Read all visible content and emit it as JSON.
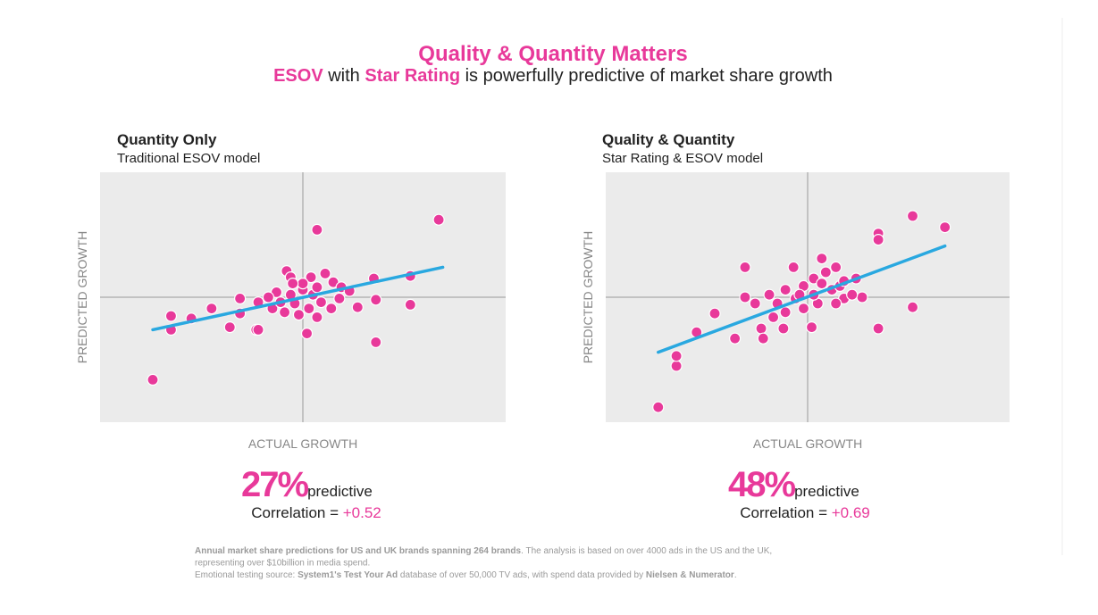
{
  "title": "Quality & Quantity Matters",
  "subtitle": [
    {
      "t": "ESOV",
      "accent": true
    },
    {
      "t": " with ",
      "accent": false
    },
    {
      "t": "Star Rating",
      "accent": true
    },
    {
      "t": " is powerfully predictive of market share growth",
      "accent": false
    }
  ],
  "chart_data": [
    {
      "type": "scatter",
      "title": "Quantity Only",
      "subtitle": "Traditional ESOV model",
      "x_label": "ACTUAL GROWTH",
      "y_label": "PREDICTED GROWTH",
      "xlim": [
        -100,
        100
      ],
      "ylim": [
        -100,
        100
      ],
      "color": "#e8399a",
      "x": [
        -74,
        67,
        7,
        -65,
        -65,
        -55,
        -45,
        -36,
        -31,
        -31,
        -23,
        -22,
        2,
        36,
        53,
        53,
        35,
        36,
        27,
        7,
        -8,
        -6,
        4,
        11,
        15,
        19,
        23,
        -13,
        -17,
        -22,
        -15,
        -9,
        -4,
        0,
        5,
        9,
        14,
        18,
        -2,
        3,
        7,
        -6,
        -11,
        0,
        -5
      ],
      "values": [
        -66,
        62,
        54,
        -15,
        -26,
        -17,
        -9,
        -24,
        -13,
        -1,
        -26,
        -26,
        -29,
        -36,
        -6,
        17,
        15,
        -2,
        -8,
        -16,
        21,
        16,
        16,
        19,
        12,
        8,
        5,
        4,
        0,
        -4,
        -9,
        -12,
        -5,
        6,
        2,
        -4,
        -9,
        -1,
        -14,
        -9,
        8,
        2,
        -4,
        11,
        11
      ],
      "trend": {
        "color": "#29a8e0",
        "x": [
          -74,
          69
        ],
        "values": [
          -26,
          24
        ]
      }
    },
    {
      "type": "scatter",
      "title": "Quality & Quantity",
      "subtitle": "Star Rating & ESOV model",
      "x_label": "ACTUAL GROWTH",
      "y_label": "PREDICTED GROWTH",
      "xlim": [
        -100,
        100
      ],
      "ylim": [
        -100,
        100
      ],
      "color": "#e8399a",
      "x": [
        -74,
        -65,
        -65,
        -55,
        -46,
        -36,
        -31,
        -31,
        -23,
        -22,
        2,
        -7,
        7,
        14,
        35,
        52,
        52,
        68,
        35,
        35,
        27,
        24,
        -26,
        -12,
        -19,
        -15,
        -11,
        -6,
        -2,
        3,
        7,
        12,
        16,
        18,
        14,
        5,
        -2,
        -11,
        -17,
        9,
        18,
        22,
        -4,
        3
      ],
      "values": [
        -88,
        -55,
        -47,
        -28,
        -13,
        -33,
        24,
        0,
        -25,
        -33,
        -24,
        24,
        31,
        24,
        -25,
        -8,
        65,
        56,
        51,
        46,
        0,
        15,
        -5,
        -25,
        2,
        -5,
        6,
        -1,
        9,
        15,
        11,
        6,
        9,
        -1,
        -5,
        -5,
        -9,
        -12,
        -16,
        20,
        13,
        2,
        2,
        2
      ],
      "trend": {
        "color": "#29a8e0",
        "x": [
          -74,
          68
        ],
        "values": [
          -44,
          41
        ]
      }
    }
  ],
  "results": [
    {
      "percent": "27%",
      "word": "predictive",
      "label": "Correlation = ",
      "value": "+0.52"
    },
    {
      "percent": "48%",
      "word": "predictive",
      "label": "Correlation = ",
      "value": "+0.69"
    }
  ],
  "footnote": [
    [
      {
        "t": "Annual market share predictions for US and UK brands spanning 264 brands",
        "bold": true
      },
      {
        "t": ". The analysis is based on over 4000 ads in the US and the UK,",
        "bold": false
      }
    ],
    [
      {
        "t": "representing over $10billion in media spend.",
        "bold": false
      }
    ],
    [
      {
        "t": "Emotional testing source: ",
        "bold": false
      },
      {
        "t": "System1's Test Your Ad",
        "bold": true
      },
      {
        "t": " database of over 50,000 TV ads, with spend data provided by ",
        "bold": false
      },
      {
        "t": "Nielsen & Numerator",
        "bold": true
      },
      {
        "t": ".",
        "bold": false
      }
    ]
  ]
}
